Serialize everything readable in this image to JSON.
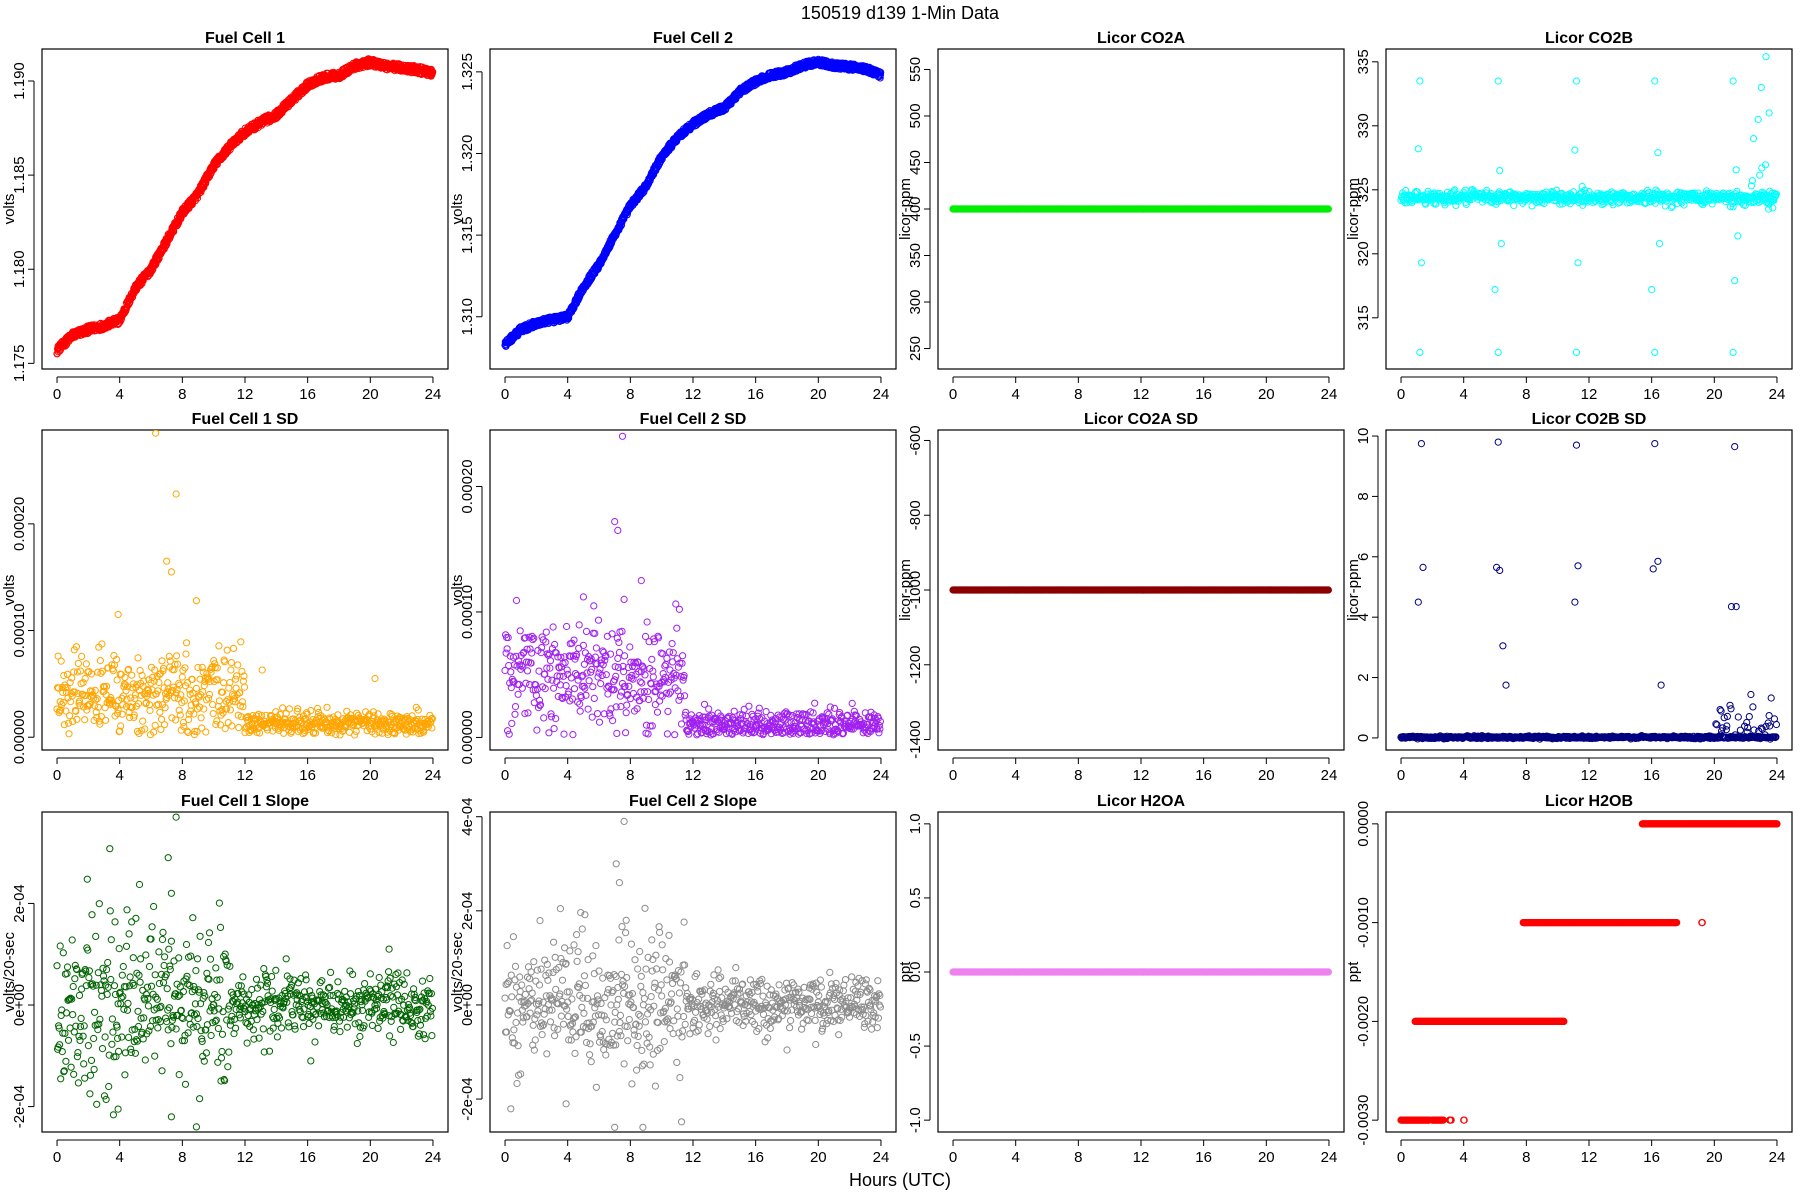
{
  "figure": {
    "title": "150519   d139   1-Min Data",
    "xlabel": "Hours (UTC)"
  },
  "chart_data": [
    {
      "id": "fc1",
      "type": "scatter",
      "title": "Fuel Cell 1",
      "ylabel": "volts",
      "color": "#ff0000",
      "xlim": [
        -0.96,
        24.96
      ],
      "ylim": [
        1.1747,
        1.1917
      ],
      "xticks": [
        0,
        4,
        8,
        12,
        16,
        20,
        24
      ],
      "xtick_labels": [
        "0",
        "4",
        "8",
        "12",
        "16",
        "20",
        "24"
      ],
      "yticks": [
        1.175,
        1.18,
        1.185,
        1.19
      ],
      "ytick_labels": [
        "1.175",
        "1.180",
        "1.185",
        "1.190"
      ],
      "pattern": "band",
      "points": [
        [
          0,
          1.1757
        ],
        [
          1,
          1.1765
        ],
        [
          2,
          1.1768
        ],
        [
          3,
          1.177
        ],
        [
          4,
          1.1773
        ],
        [
          5,
          1.179
        ],
        [
          6,
          1.18
        ],
        [
          7,
          1.1815
        ],
        [
          8,
          1.183
        ],
        [
          9,
          1.184
        ],
        [
          10,
          1.1855
        ],
        [
          11,
          1.1865
        ],
        [
          12,
          1.1873
        ],
        [
          13,
          1.1878
        ],
        [
          14,
          1.1882
        ],
        [
          15,
          1.189
        ],
        [
          16,
          1.1898
        ],
        [
          17,
          1.1902
        ],
        [
          18,
          1.1903
        ],
        [
          19,
          1.1908
        ],
        [
          20,
          1.191
        ],
        [
          21,
          1.1908
        ],
        [
          22,
          1.1907
        ],
        [
          23,
          1.1906
        ],
        [
          24,
          1.1904
        ]
      ],
      "band": 0.0004
    },
    {
      "id": "fc2",
      "type": "scatter",
      "title": "Fuel Cell 2",
      "ylabel": "volts",
      "color": "#0000ff",
      "xlim": [
        -0.96,
        24.96
      ],
      "ylim": [
        1.3068,
        1.3264
      ],
      "xticks": [
        0,
        4,
        8,
        12,
        16,
        20,
        24
      ],
      "xtick_labels": [
        "0",
        "4",
        "8",
        "12",
        "16",
        "20",
        "24"
      ],
      "yticks": [
        1.31,
        1.315,
        1.32,
        1.325
      ],
      "ytick_labels": [
        "1.310",
        "1.315",
        "1.320",
        "1.325"
      ],
      "pattern": "band",
      "points": [
        [
          0,
          1.3083
        ],
        [
          1,
          1.3092
        ],
        [
          2,
          1.3096
        ],
        [
          3,
          1.3098
        ],
        [
          4,
          1.31
        ],
        [
          5,
          1.3118
        ],
        [
          6,
          1.3132
        ],
        [
          7,
          1.315
        ],
        [
          8,
          1.3168
        ],
        [
          9,
          1.318
        ],
        [
          10,
          1.3198
        ],
        [
          11,
          1.321
        ],
        [
          12,
          1.3218
        ],
        [
          13,
          1.3224
        ],
        [
          14,
          1.3228
        ],
        [
          15,
          1.3238
        ],
        [
          16,
          1.3244
        ],
        [
          17,
          1.3248
        ],
        [
          18,
          1.325
        ],
        [
          19,
          1.3254
        ],
        [
          20,
          1.3256
        ],
        [
          21,
          1.3254
        ],
        [
          22,
          1.3253
        ],
        [
          23,
          1.3252
        ],
        [
          24,
          1.3248
        ]
      ],
      "band": 0.0004
    },
    {
      "id": "co2a",
      "type": "scatter",
      "title": "Licor CO2A",
      "ylabel": "licor-ppm",
      "color": "#00ee00",
      "xlim": [
        -0.96,
        24.96
      ],
      "ylim": [
        228,
        572
      ],
      "xticks": [
        0,
        4,
        8,
        12,
        16,
        20,
        24
      ],
      "xtick_labels": [
        "0",
        "4",
        "8",
        "12",
        "16",
        "20",
        "24"
      ],
      "yticks": [
        250,
        300,
        350,
        400,
        450,
        500,
        550
      ],
      "ytick_labels": [
        "250",
        "300",
        "350",
        "400",
        "450",
        "500",
        "550"
      ],
      "pattern": "flat",
      "value": 400
    },
    {
      "id": "co2b",
      "type": "scatter",
      "title": "Licor CO2B",
      "ylabel": "licor-ppm",
      "color": "#00ffff",
      "xlim": [
        -0.96,
        24.96
      ],
      "ylim": [
        311,
        336
      ],
      "xticks": [
        0,
        4,
        8,
        12,
        16,
        20,
        24
      ],
      "xtick_labels": [
        "0",
        "4",
        "8",
        "12",
        "16",
        "20",
        "24"
      ],
      "yticks": [
        315,
        320,
        325,
        330,
        335
      ],
      "ytick_labels": [
        "315",
        "320",
        "325",
        "330",
        "335"
      ],
      "pattern": "flat_noisy",
      "value": 324.4,
      "noise": 0.25,
      "spikes": [
        [
          1.2,
          333.5
        ],
        [
          6.2,
          333.5
        ],
        [
          11.2,
          333.5
        ],
        [
          16.2,
          333.5
        ],
        [
          21.2,
          333.5
        ],
        [
          1.2,
          312.3
        ],
        [
          6.2,
          312.3
        ],
        [
          11.2,
          312.3
        ],
        [
          16.2,
          312.3
        ],
        [
          21.2,
          312.3
        ],
        [
          1.1,
          328.2
        ],
        [
          6.3,
          326.5
        ],
        [
          11.1,
          328.1
        ],
        [
          16.4,
          327.9
        ],
        [
          1.3,
          319.3
        ],
        [
          6.0,
          317.2
        ],
        [
          11.3,
          319.3
        ],
        [
          16.0,
          317.2
        ],
        [
          21.3,
          317.9
        ],
        [
          6.4,
          320.8
        ],
        [
          16.5,
          320.8
        ],
        [
          21.5,
          321.4
        ],
        [
          23.3,
          335.4
        ],
        [
          23.0,
          333.0
        ],
        [
          22.8,
          330.5
        ],
        [
          23.5,
          331.0
        ],
        [
          22.5,
          329.0
        ],
        [
          23.8,
          324.3
        ]
      ],
      "late_noise": [
        21,
        24,
        3.0
      ]
    },
    {
      "id": "fc1sd",
      "type": "scatter",
      "title": "Fuel Cell 1 SD",
      "ylabel": "volts",
      "color": "#ffa500",
      "xlim": [
        -0.96,
        24.96
      ],
      "ylim": [
        -1.2e-05,
        0.000288
      ],
      "xticks": [
        0,
        4,
        8,
        12,
        16,
        20,
        24
      ],
      "xtick_labels": [
        "0",
        "4",
        "8",
        "12",
        "16",
        "20",
        "24"
      ],
      "yticks": [
        0,
        0.0001,
        0.0002
      ],
      "ytick_labels": [
        "0.00000",
        "0.00010",
        "0.00020"
      ],
      "pattern": "sd",
      "segments": [
        [
          0,
          12,
          4.2e-05,
          2e-05
        ],
        [
          12,
          24,
          1.3e-05,
          6e-06
        ]
      ],
      "spikes": [
        [
          6.3,
          0.000285
        ],
        [
          7.6,
          0.000228
        ],
        [
          7.0,
          0.000165
        ],
        [
          7.3,
          0.000155
        ],
        [
          8.9,
          0.000128
        ],
        [
          3.9,
          0.000115
        ],
        [
          20.3,
          5.5e-05
        ],
        [
          13.1,
          6.3e-05
        ]
      ]
    },
    {
      "id": "fc2sd",
      "type": "scatter",
      "title": "Fuel Cell 2 SD",
      "ylabel": "volts",
      "color": "#a020f0",
      "xlim": [
        -0.96,
        24.96
      ],
      "ylim": [
        -1e-05,
        0.000245
      ],
      "xticks": [
        0,
        4,
        8,
        12,
        16,
        20,
        24
      ],
      "xtick_labels": [
        "0",
        "4",
        "8",
        "12",
        "16",
        "20",
        "24"
      ],
      "yticks": [
        0,
        0.0001,
        0.0002
      ],
      "ytick_labels": [
        "0.00000",
        "0.00010",
        "0.00020"
      ],
      "pattern": "sd",
      "segments": [
        [
          0,
          11.5,
          5e-05,
          2.2e-05
        ],
        [
          11.5,
          24,
          1e-05,
          6e-06
        ]
      ],
      "spikes": [
        [
          7.5,
          0.00024
        ],
        [
          7.0,
          0.000172
        ],
        [
          7.2,
          0.000165
        ],
        [
          8.7,
          0.000125
        ],
        [
          7.6,
          0.00011
        ],
        [
          5.0,
          0.000112
        ]
      ]
    },
    {
      "id": "co2asd",
      "type": "scatter",
      "title": "Licor CO2A SD",
      "ylabel": "licor-ppm",
      "color": "#8b0000",
      "xlim": [
        -0.96,
        24.96
      ],
      "ylim": [
        -1428,
        -572
      ],
      "xticks": [
        0,
        4,
        8,
        12,
        16,
        20,
        24
      ],
      "xtick_labels": [
        "0",
        "4",
        "8",
        "12",
        "16",
        "20",
        "24"
      ],
      "yticks": [
        -1400,
        -1200,
        -1000,
        -800,
        -600
      ],
      "ytick_labels": [
        "-1400",
        "-1200",
        "-1000",
        "-800",
        "-600"
      ],
      "pattern": "flat",
      "value": -1000
    },
    {
      "id": "co2bsd",
      "type": "scatter",
      "title": "Licor CO2B SD",
      "ylabel": "licor-ppm",
      "color": "#000080",
      "xlim": [
        -0.96,
        24.96
      ],
      "ylim": [
        -0.4,
        10.2
      ],
      "xticks": [
        0,
        4,
        8,
        12,
        16,
        20,
        24
      ],
      "xtick_labels": [
        "0",
        "4",
        "8",
        "12",
        "16",
        "20",
        "24"
      ],
      "yticks": [
        0,
        2,
        4,
        6,
        8,
        10
      ],
      "ytick_labels": [
        "0",
        "2",
        "4",
        "6",
        "8",
        "10"
      ],
      "pattern": "flat_noisy",
      "value": 0.02,
      "noise": 0.02,
      "spikes": [
        [
          1.3,
          9.75
        ],
        [
          6.2,
          9.8
        ],
        [
          11.2,
          9.7
        ],
        [
          16.2,
          9.75
        ],
        [
          21.3,
          9.65
        ],
        [
          1.4,
          5.65
        ],
        [
          6.1,
          5.65
        ],
        [
          6.3,
          5.55
        ],
        [
          11.3,
          5.7
        ],
        [
          16.1,
          5.6
        ],
        [
          16.4,
          5.85
        ],
        [
          1.1,
          4.5
        ],
        [
          11.1,
          4.5
        ],
        [
          21.1,
          4.35
        ],
        [
          21.4,
          4.35
        ],
        [
          6.5,
          3.05
        ],
        [
          6.7,
          1.75
        ],
        [
          16.6,
          1.75
        ]
      ],
      "late_noise": [
        20,
        24,
        1.4
      ]
    },
    {
      "id": "fc1slope",
      "type": "scatter",
      "title": "Fuel Cell 1 Slope",
      "ylabel": "volts/20-sec",
      "color": "#006400",
      "xlim": [
        -0.96,
        24.96
      ],
      "ylim": [
        -0.00025,
        0.00038
      ],
      "xticks": [
        0,
        4,
        8,
        12,
        16,
        20,
        24
      ],
      "xtick_labels": [
        "0",
        "4",
        "8",
        "12",
        "16",
        "20",
        "24"
      ],
      "yticks": [
        -0.0002,
        0,
        0.0002
      ],
      "ytick_labels": [
        "-2e-04",
        "0e+00",
        "2e-04"
      ],
      "pattern": "noise",
      "segments": [
        [
          0,
          11,
          0.0,
          8.5e-05
        ],
        [
          11,
          24,
          0.0,
          3e-05
        ]
      ],
      "spikes": [
        [
          7.6,
          0.00037
        ],
        [
          7.1,
          0.00029
        ],
        [
          7.3,
          0.00022
        ],
        [
          8.9,
          -0.00024
        ],
        [
          7.3,
          -0.00022
        ],
        [
          3.9,
          -0.000205
        ],
        [
          21.2,
          0.00011
        ],
        [
          16.2,
          -0.00011
        ]
      ]
    },
    {
      "id": "fc2slope",
      "type": "scatter",
      "title": "Fuel Cell 2 Slope",
      "ylabel": "volts/20-sec",
      "color": "#8c8c8c",
      "xlim": [
        -0.96,
        24.96
      ],
      "ylim": [
        -0.00027,
        0.00041
      ],
      "xticks": [
        0,
        4,
        8,
        12,
        16,
        20,
        24
      ],
      "xtick_labels": [
        "0",
        "4",
        "8",
        "12",
        "16",
        "20",
        "24"
      ],
      "yticks": [
        -0.0002,
        0,
        0.0002,
        0.0004
      ],
      "ytick_labels": [
        "-2e-04",
        "0e+00",
        "2e-04",
        "4e-04"
      ],
      "pattern": "noise",
      "segments": [
        [
          0,
          11.5,
          0.0,
          8e-05
        ],
        [
          11.5,
          24,
          0.0,
          2.8e-05
        ]
      ],
      "spikes": [
        [
          7.6,
          0.00039
        ],
        [
          7.1,
          0.0003
        ],
        [
          7.3,
          0.00026
        ],
        [
          7.0,
          -0.00026
        ],
        [
          8.8,
          -0.00026
        ],
        [
          3.9,
          -0.00021
        ]
      ]
    },
    {
      "id": "h2oa",
      "type": "scatter",
      "title": "Licor H2OA",
      "ylabel": "ppt",
      "color": "#ee82ee",
      "xlim": [
        -0.96,
        24.96
      ],
      "ylim": [
        -1.08,
        1.08
      ],
      "xticks": [
        0,
        4,
        8,
        12,
        16,
        20,
        24
      ],
      "xtick_labels": [
        "0",
        "4",
        "8",
        "12",
        "16",
        "20",
        "24"
      ],
      "yticks": [
        -1,
        -0.5,
        0,
        0.5,
        1
      ],
      "ytick_labels": [
        "-1.0",
        "-0.5",
        "0.0",
        "0.5",
        "1.0"
      ],
      "pattern": "flat",
      "value": 0
    },
    {
      "id": "h2ob",
      "type": "scatter",
      "title": "Licor H2OB",
      "ylabel": "ppt",
      "color": "#ff0000",
      "xlim": [
        -0.96,
        24.96
      ],
      "ylim": [
        -0.00312,
        0.00012
      ],
      "xticks": [
        0,
        4,
        8,
        12,
        16,
        20,
        24
      ],
      "xtick_labels": [
        "0",
        "4",
        "8",
        "12",
        "16",
        "20",
        "24"
      ],
      "yticks": [
        -0.003,
        -0.002,
        -0.001,
        0
      ],
      "ytick_labels": [
        "-0.0030",
        "-0.0020",
        "-0.0010",
        "0.0000"
      ],
      "pattern": "steps",
      "steps": [
        [
          0,
          1.8,
          -0.003
        ],
        [
          2.0,
          2.7,
          -0.003
        ],
        [
          3.1,
          3.2,
          -0.003
        ],
        [
          4.0,
          4.05,
          -0.003
        ],
        [
          0.9,
          10.4,
          -0.002
        ],
        [
          7.8,
          17.6,
          -0.001
        ],
        [
          15.4,
          24,
          0.0
        ],
        [
          19.2,
          19.25,
          -0.001
        ]
      ]
    }
  ]
}
